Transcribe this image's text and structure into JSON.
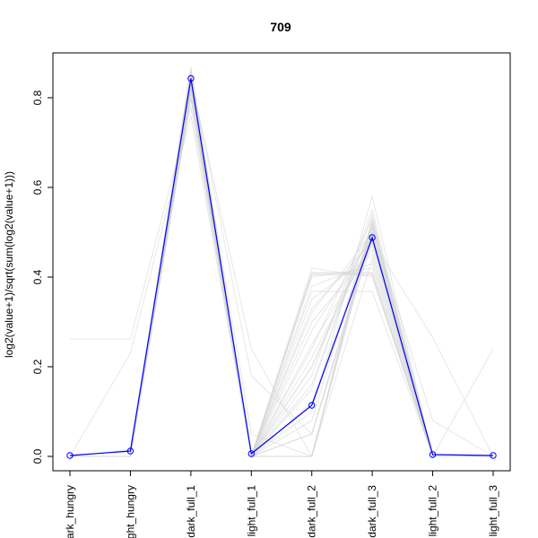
{
  "chart_data": {
    "type": "line",
    "title": "709",
    "xlabel": "",
    "ylabel": "log2(value+1)/sqrt(sum(log2(value+1)))",
    "categories": [
      "dark_hungry",
      "light_hungry",
      "dark_full_1",
      "light_full_1",
      "dark_full_2",
      "dark_full_3",
      "light_full_2",
      "light_full_3"
    ],
    "ylim": [
      0,
      0.8
    ],
    "yticks": [
      0.0,
      0.2,
      0.4,
      0.6,
      0.8
    ],
    "ytick_labels": [
      "0.0",
      "0.2",
      "0.4",
      "0.6",
      "0.8"
    ],
    "grid": false,
    "legend": "none",
    "highlight_series": {
      "values": [
        0.002,
        0.012,
        0.843,
        0.006,
        0.114,
        0.488,
        0.004,
        0.002
      ],
      "color": "#0000ff"
    },
    "background_series": {
      "color": "#d3d3d3",
      "series": [
        [
          0.262,
          0.262,
          0.78,
          0.0,
          0.0,
          0.52,
          0.0,
          0.0
        ],
        [
          0.0,
          0.0,
          0.82,
          0.0,
          0.408,
          0.408,
          0.0,
          0.0
        ],
        [
          0.0,
          0.0,
          0.8,
          0.0,
          0.368,
          0.368,
          0.0,
          0.0
        ],
        [
          0.0,
          0.0,
          0.82,
          0.0,
          0.405,
          0.405,
          0.0,
          0.0
        ],
        [
          0.0,
          0.015,
          0.86,
          0.0,
          0.0,
          0.53,
          0.0,
          0.0
        ],
        [
          0.0,
          0.0,
          0.845,
          0.0,
          0.05,
          0.5,
          0.0,
          0.0
        ],
        [
          0.0,
          0.0,
          0.835,
          0.0,
          0.08,
          0.52,
          0.0,
          0.0
        ],
        [
          0.0,
          0.0,
          0.8,
          0.0,
          0.12,
          0.5,
          0.0,
          0.0
        ],
        [
          0.0,
          0.0,
          0.82,
          0.0,
          0.2,
          0.51,
          0.0,
          0.0
        ],
        [
          0.0,
          0.0,
          0.85,
          0.0,
          0.22,
          0.48,
          0.0,
          0.0
        ],
        [
          0.0,
          0.0,
          0.84,
          0.0,
          0.25,
          0.47,
          0.0,
          0.0
        ],
        [
          0.0,
          0.0,
          0.83,
          0.0,
          0.28,
          0.49,
          0.0,
          0.0
        ],
        [
          0.0,
          0.0,
          0.87,
          0.0,
          0.3,
          0.46,
          0.0,
          0.0
        ],
        [
          0.0,
          0.0,
          0.84,
          0.0,
          0.32,
          0.5,
          0.0,
          0.0
        ],
        [
          0.0,
          0.0,
          0.83,
          0.0,
          0.35,
          0.45,
          0.0,
          0.0
        ],
        [
          0.0,
          0.0,
          0.84,
          0.0,
          0.38,
          0.43,
          0.0,
          0.0
        ],
        [
          0.0,
          0.0,
          0.85,
          0.0,
          0.4,
          0.42,
          0.0,
          0.0
        ],
        [
          0.0,
          0.0,
          0.81,
          0.0,
          0.18,
          0.55,
          0.0,
          0.0
        ],
        [
          0.0,
          0.0,
          0.84,
          0.0,
          0.1,
          0.58,
          0.0,
          0.0
        ],
        [
          0.0,
          0.0,
          0.82,
          0.0,
          0.15,
          0.54,
          0.0,
          0.0
        ],
        [
          0.0,
          0.0,
          0.8,
          0.0,
          0.16,
          0.52,
          0.0,
          0.0
        ],
        [
          0.0,
          0.0,
          0.86,
          0.0,
          0.2,
          0.49,
          0.0,
          0.0
        ],
        [
          0.0,
          0.23,
          0.76,
          0.0,
          0.33,
          0.48,
          0.0,
          0.0
        ],
        [
          0.0,
          0.0,
          0.84,
          0.24,
          0.0,
          0.52,
          0.0,
          0.0
        ],
        [
          0.0,
          0.0,
          0.85,
          0.18,
          0.05,
          0.5,
          0.0,
          0.0
        ],
        [
          0.0,
          0.0,
          0.85,
          0.05,
          0.0,
          0.5,
          0.0,
          0.24
        ],
        [
          0.0,
          0.0,
          0.84,
          0.0,
          0.0,
          0.51,
          0.08,
          0.0
        ],
        [
          0.0,
          0.0,
          0.84,
          0.0,
          0.05,
          0.48,
          0.265,
          0.0
        ],
        [
          0.0,
          0.0,
          0.83,
          0.0,
          0.0,
          0.44,
          0.0,
          0.0
        ],
        [
          0.0,
          0.0,
          0.84,
          0.0,
          0.41,
          0.41,
          0.0,
          0.0
        ],
        [
          0.0,
          0.0,
          0.85,
          0.0,
          0.42,
          0.4,
          0.0,
          0.0
        ],
        [
          0.0,
          0.0,
          0.82,
          0.0,
          0.24,
          0.53,
          0.0,
          0.0
        ]
      ]
    }
  }
}
